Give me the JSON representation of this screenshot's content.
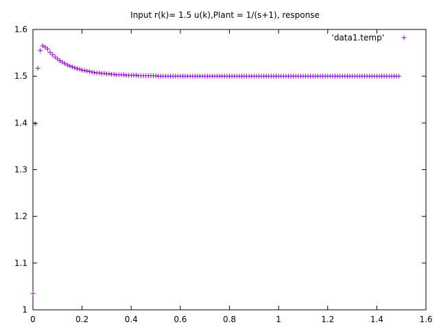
{
  "chart_data": {
    "type": "scatter",
    "title": "Input r(k)= 1.5 u(k),Plant = 1/(s+1), response",
    "xlabel": "",
    "ylabel": "",
    "xlim": [
      0,
      1.6
    ],
    "ylim": [
      1,
      1.6
    ],
    "xticks": [
      "0",
      "0.2",
      "0.4",
      "0.6",
      "0.8",
      "1",
      "1.2",
      "1.4",
      "1.6"
    ],
    "yticks": [
      "1",
      "1.1",
      "1.2",
      "1.3",
      "1.4",
      "1.5",
      "1.6"
    ],
    "grid": false,
    "legend_position": "top-right",
    "color": "#9400d3",
    "marker": "plus",
    "series": [
      {
        "name": "'data1.temp'",
        "x": [
          0,
          0.01,
          0.02,
          0.03,
          0.04,
          0.05,
          0.06,
          0.07,
          0.08,
          0.09,
          0.1,
          0.11,
          0.12,
          0.13,
          0.14,
          0.15,
          0.16,
          0.17,
          0.18,
          0.19,
          0.2,
          0.21,
          0.22,
          0.23,
          0.24,
          0.25,
          0.26,
          0.27,
          0.28,
          0.29,
          0.3,
          0.31,
          0.32,
          0.33,
          0.34,
          0.35,
          0.36,
          0.37,
          0.38,
          0.39,
          0.4,
          0.41,
          0.42,
          0.43,
          0.44,
          0.45,
          0.46,
          0.47,
          0.48,
          0.49,
          0.5,
          0.51,
          0.52,
          0.53,
          0.54,
          0.55,
          0.56,
          0.57,
          0.58,
          0.59,
          0.6,
          0.61,
          0.62,
          0.63,
          0.64,
          0.65,
          0.66,
          0.67,
          0.68,
          0.69,
          0.7,
          0.71,
          0.72,
          0.73,
          0.74,
          0.75,
          0.76,
          0.77,
          0.78,
          0.79,
          0.8,
          0.81,
          0.82,
          0.83,
          0.84,
          0.85,
          0.86,
          0.87,
          0.88,
          0.89,
          0.9,
          0.91,
          0.92,
          0.93,
          0.94,
          0.95,
          0.96,
          0.97,
          0.98,
          0.99,
          1.0,
          1.01,
          1.02,
          1.03,
          1.04,
          1.05,
          1.06,
          1.07,
          1.08,
          1.09,
          1.1,
          1.11,
          1.12,
          1.13,
          1.14,
          1.15,
          1.16,
          1.17,
          1.18,
          1.19,
          1.2,
          1.21,
          1.22,
          1.23,
          1.24,
          1.25,
          1.26,
          1.27,
          1.28,
          1.29,
          1.3,
          1.31,
          1.32,
          1.33,
          1.34,
          1.35,
          1.36,
          1.37,
          1.38,
          1.39,
          1.4,
          1.41,
          1.42,
          1.43,
          1.44,
          1.45,
          1.46,
          1.47,
          1.48,
          1.49
        ],
        "y": [
          1.035,
          1.398,
          1.517,
          1.555,
          1.565,
          1.562,
          1.558,
          1.551,
          1.546,
          1.541,
          1.537,
          1.533,
          1.53,
          1.527,
          1.524,
          1.522,
          1.52,
          1.518,
          1.516,
          1.515,
          1.513,
          1.512,
          1.511,
          1.51,
          1.509,
          1.508,
          1.507,
          1.507,
          1.506,
          1.506,
          1.505,
          1.505,
          1.504,
          1.504,
          1.503,
          1.503,
          1.503,
          1.503,
          1.502,
          1.502,
          1.502,
          1.502,
          1.502,
          1.501,
          1.501,
          1.501,
          1.501,
          1.501,
          1.501,
          1.501,
          1.501,
          1.5,
          1.5,
          1.5,
          1.5,
          1.5,
          1.5,
          1.5,
          1.5,
          1.5,
          1.5,
          1.5,
          1.5,
          1.5,
          1.5,
          1.5,
          1.5,
          1.5,
          1.5,
          1.5,
          1.5,
          1.5,
          1.5,
          1.5,
          1.5,
          1.5,
          1.5,
          1.5,
          1.5,
          1.5,
          1.5,
          1.5,
          1.5,
          1.5,
          1.5,
          1.5,
          1.5,
          1.5,
          1.5,
          1.5,
          1.5,
          1.5,
          1.5,
          1.5,
          1.5,
          1.5,
          1.5,
          1.5,
          1.5,
          1.5,
          1.5,
          1.5,
          1.5,
          1.5,
          1.5,
          1.5,
          1.5,
          1.5,
          1.5,
          1.5,
          1.5,
          1.5,
          1.5,
          1.5,
          1.5,
          1.5,
          1.5,
          1.5,
          1.5,
          1.5,
          1.5,
          1.5,
          1.5,
          1.5,
          1.5,
          1.5,
          1.5,
          1.5,
          1.5,
          1.5,
          1.5,
          1.5,
          1.5,
          1.5,
          1.5,
          1.5,
          1.5,
          1.5,
          1.5,
          1.5,
          1.5,
          1.5,
          1.5,
          1.5,
          1.5,
          1.5,
          1.5,
          1.5,
          1.5,
          1.5
        ]
      }
    ]
  }
}
